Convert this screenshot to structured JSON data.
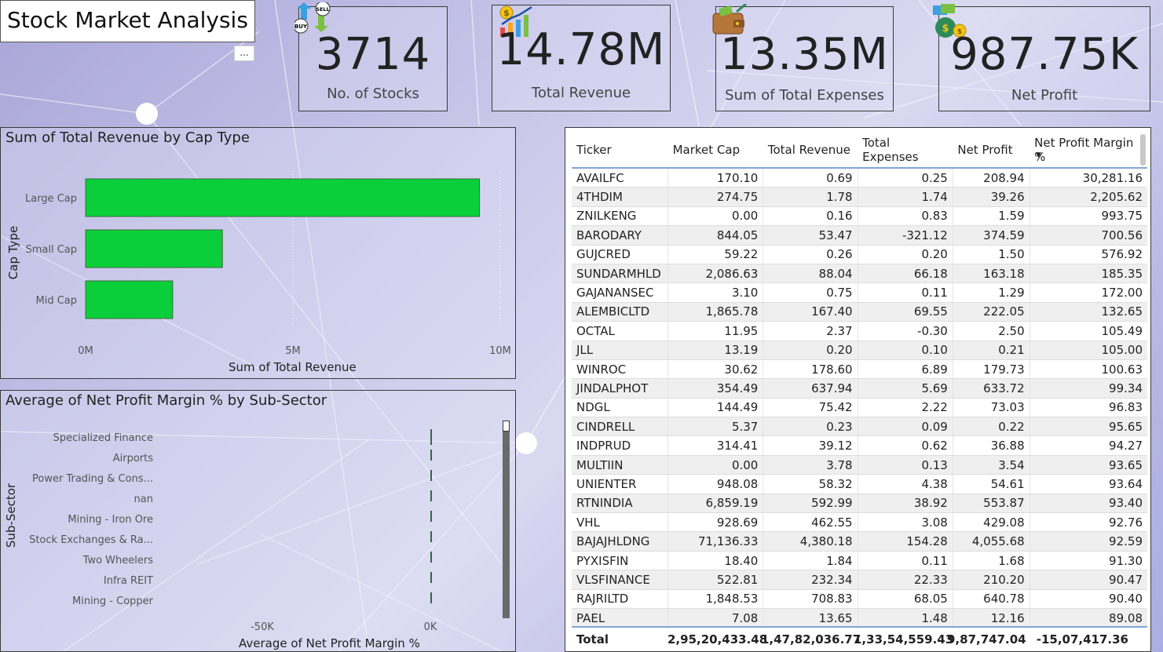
{
  "page_title": "Stock Market Analysis",
  "more_options": "...",
  "kpis": [
    {
      "value": "3714",
      "label": "No. of Stocks",
      "icon": "buy-sell-icon"
    },
    {
      "value": "14.78M",
      "label": "Total Revenue",
      "icon": "revenue-chart-icon"
    },
    {
      "value": "13.35M",
      "label": "Sum of Total Expenses",
      "icon": "wallet-icon"
    },
    {
      "value": "987.75K",
      "label": "Net Profit",
      "icon": "money-bag-icon"
    }
  ],
  "chart_data": [
    {
      "type": "bar",
      "orientation": "horizontal",
      "title": "Sum of Total Revenue by Cap Type",
      "xlabel": "Sum of Total Revenue",
      "ylabel": "Cap Type",
      "categories": [
        "Large Cap",
        "Small Cap",
        "Mid Cap"
      ],
      "values": [
        9.5,
        3.3,
        2.1
      ],
      "value_unit": "M",
      "xlim": [
        0,
        10
      ],
      "xticks": [
        "0M",
        "5M",
        "10M"
      ],
      "color": "#0bcf3a"
    },
    {
      "type": "bar",
      "orientation": "horizontal",
      "title": "Average of Net Profit Margin % by Sub-Sector",
      "xlabel": "Average of Net Profit Margin %",
      "ylabel": "Sub-Sector",
      "categories": [
        "Specialized Finance",
        "Airports",
        "Power Trading & Cons...",
        "nan",
        "Mining - Iron Ore",
        "Stock Exchanges & Ra...",
        "Two Wheelers",
        "Infra REIT",
        "Mining - Copper"
      ],
      "xticks": [
        "-50K",
        "0K"
      ],
      "color": "#2e6b3c"
    }
  ],
  "table": {
    "columns": [
      "Ticker",
      "Market Cap",
      "Total Revenue",
      "Total Expenses",
      "Net Profit",
      "Net Profit Margin %"
    ],
    "rows": [
      [
        "AVAILFC",
        "170.10",
        "0.69",
        "0.25",
        "208.94",
        "30,281.16"
      ],
      [
        "4THDIM",
        "274.75",
        "1.78",
        "1.74",
        "39.26",
        "2,205.62"
      ],
      [
        "ZNILKENG",
        "0.00",
        "0.16",
        "0.83",
        "1.59",
        "993.75"
      ],
      [
        "BARODARY",
        "844.05",
        "53.47",
        "-321.12",
        "374.59",
        "700.56"
      ],
      [
        "GUJCRED",
        "59.22",
        "0.26",
        "0.20",
        "1.50",
        "576.92"
      ],
      [
        "SUNDARMHLD",
        "2,086.63",
        "88.04",
        "66.18",
        "163.18",
        "185.35"
      ],
      [
        "GAJANANSEC",
        "3.10",
        "0.75",
        "0.11",
        "1.29",
        "172.00"
      ],
      [
        "ALEMBICLTD",
        "1,865.78",
        "167.40",
        "69.55",
        "222.05",
        "132.65"
      ],
      [
        "OCTAL",
        "11.95",
        "2.37",
        "-0.30",
        "2.50",
        "105.49"
      ],
      [
        "JLL",
        "13.19",
        "0.20",
        "0.10",
        "0.21",
        "105.00"
      ],
      [
        "WINROC",
        "30.62",
        "178.60",
        "6.89",
        "179.73",
        "100.63"
      ],
      [
        "JINDALPHOT",
        "354.49",
        "637.94",
        "5.69",
        "633.72",
        "99.34"
      ],
      [
        "NDGL",
        "144.49",
        "75.42",
        "2.22",
        "73.03",
        "96.83"
      ],
      [
        "CINDRELL",
        "5.37",
        "0.23",
        "0.09",
        "0.22",
        "95.65"
      ],
      [
        "INDPRUD",
        "314.41",
        "39.12",
        "0.62",
        "36.88",
        "94.27"
      ],
      [
        "MULTIIN",
        "0.00",
        "3.78",
        "0.13",
        "3.54",
        "93.65"
      ],
      [
        "UNIENTER",
        "948.08",
        "58.32",
        "4.38",
        "54.61",
        "93.64"
      ],
      [
        "RTNINDIA",
        "6,859.19",
        "592.99",
        "38.92",
        "553.87",
        "93.40"
      ],
      [
        "VHL",
        "928.69",
        "462.55",
        "3.08",
        "429.08",
        "92.76"
      ],
      [
        "BAJAJHLDNG",
        "71,136.33",
        "4,380.18",
        "154.28",
        "4,055.68",
        "92.59"
      ],
      [
        "PYXISFIN",
        "18.40",
        "1.84",
        "0.11",
        "1.68",
        "91.30"
      ],
      [
        "VLSFINANCE",
        "522.81",
        "232.34",
        "22.33",
        "210.20",
        "90.47"
      ],
      [
        "RAJRILTD",
        "1,848.53",
        "708.83",
        "68.05",
        "640.78",
        "90.40"
      ],
      [
        "PAEL",
        "7.08",
        "13.65",
        "1.48",
        "12.16",
        "89.08"
      ]
    ],
    "total": [
      "Total",
      "2,95,20,433.48",
      "1,47,82,036.77",
      "1,33,54,559.43",
      "9,87,747.04",
      "-15,07,417.36"
    ]
  }
}
